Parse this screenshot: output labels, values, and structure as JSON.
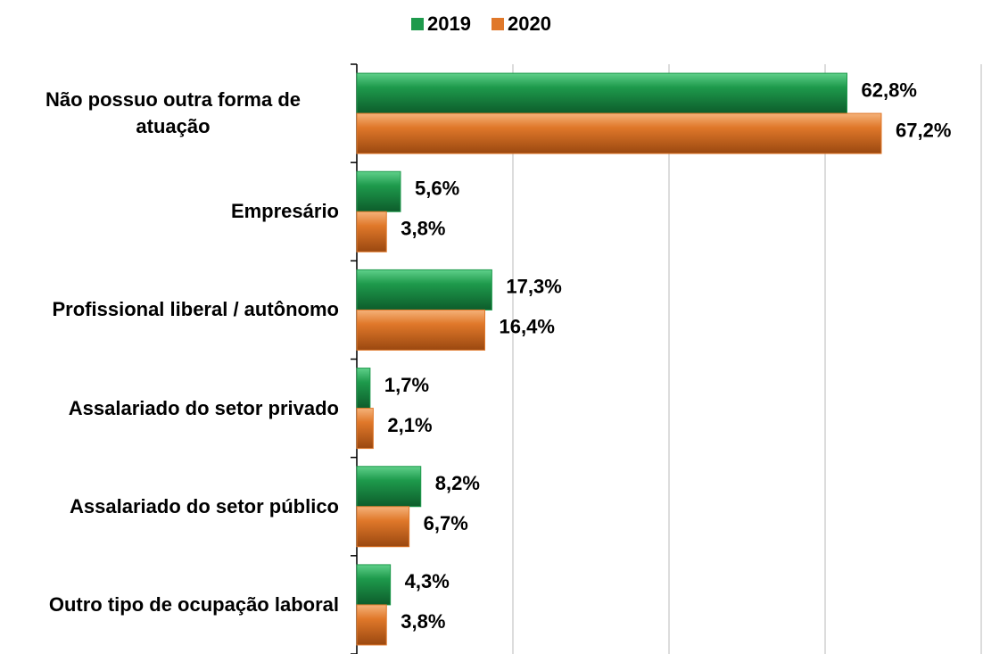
{
  "chart_data": {
    "type": "bar",
    "orientation": "horizontal",
    "categories": [
      "Não possuo outra forma de atuação",
      "Empresário",
      "Profissional liberal / autônomo",
      "Assalariado do setor privado",
      "Assalariado do setor público",
      "Outro tipo de ocupação laboral"
    ],
    "series": [
      {
        "name": "2019",
        "color": "#1e9a4c",
        "values": [
          62.8,
          5.6,
          17.3,
          1.7,
          8.2,
          4.3
        ],
        "value_labels": [
          "62,8%",
          "5,6%",
          "17,3%",
          "1,7%",
          "8,2%",
          "4,3%"
        ]
      },
      {
        "name": "2020",
        "color": "#e0782a",
        "values": [
          67.2,
          3.8,
          16.4,
          2.1,
          6.7,
          3.8
        ],
        "value_labels": [
          "67,2%",
          "3,8%",
          "16,4%",
          "2,1%",
          "6,7%",
          "3,8%"
        ]
      }
    ],
    "xlim": [
      0,
      80
    ],
    "xticks": [
      0,
      20,
      40,
      60,
      80
    ],
    "grid": true,
    "legend": "top"
  }
}
